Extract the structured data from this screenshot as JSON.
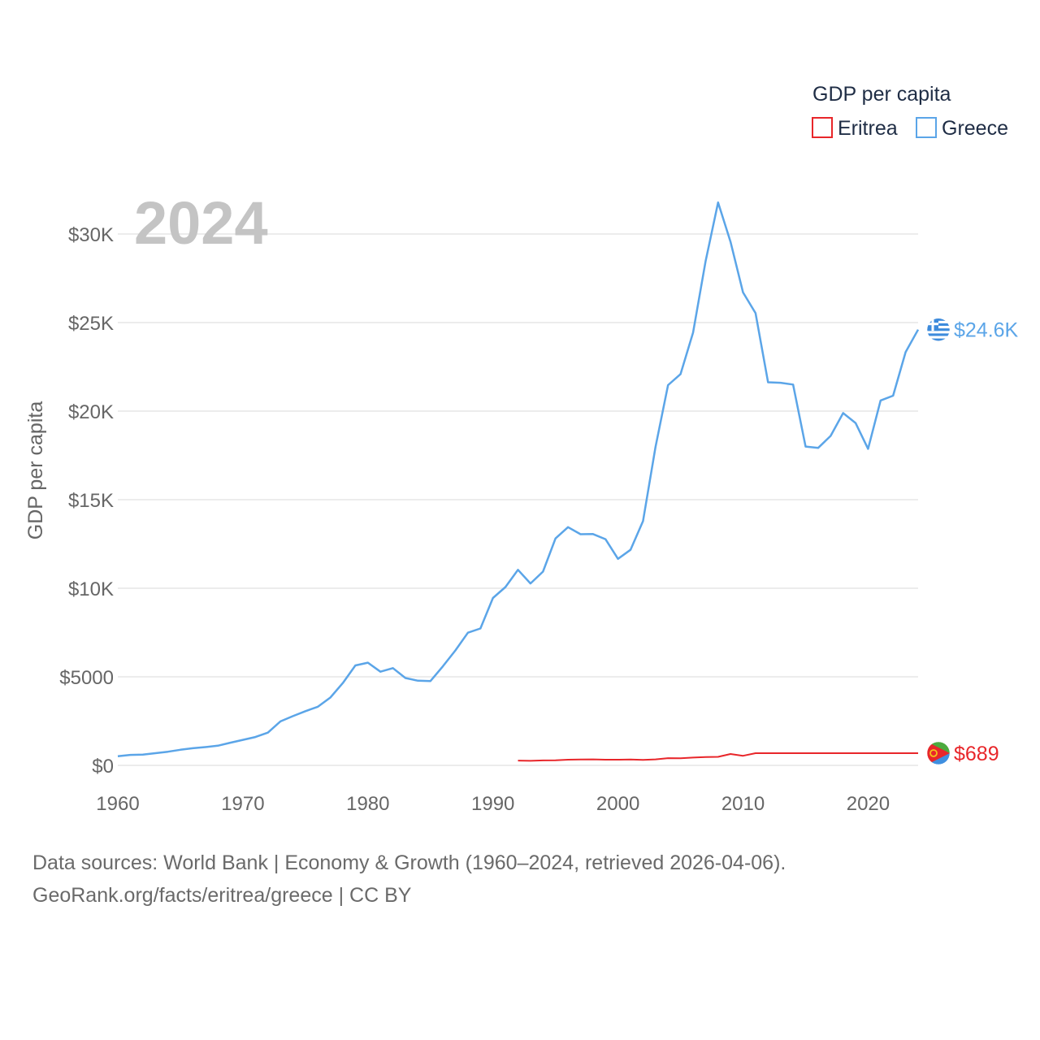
{
  "chart_data": {
    "type": "line",
    "title": "GDP per capita",
    "year_watermark": "2024",
    "ylabel": "GDP per capita",
    "xlabel": "",
    "xlim": [
      1960,
      2024
    ],
    "ylim": [
      0,
      32000
    ],
    "x_ticks": [
      "1960",
      "1970",
      "1980",
      "1990",
      "2000",
      "2010",
      "2020"
    ],
    "y_ticks": [
      {
        "value": 0,
        "label": "$0"
      },
      {
        "value": 5000,
        "label": "$5000"
      },
      {
        "value": 10000,
        "label": "$10K"
      },
      {
        "value": 15000,
        "label": "$15K"
      },
      {
        "value": 20000,
        "label": "$20K"
      },
      {
        "value": 25000,
        "label": "$25K"
      },
      {
        "value": 30000,
        "label": "$30K"
      }
    ],
    "grid": true,
    "legend": {
      "title": "GDP per capita",
      "placement": "top-right"
    },
    "series": [
      {
        "name": "Eritrea",
        "color": "#e8262a",
        "end_label": "$689",
        "flag_icon": "eritrea-flag-icon",
        "x": [
          1992,
          1993,
          1994,
          1995,
          1996,
          1997,
          1998,
          1999,
          2000,
          2001,
          2002,
          2003,
          2004,
          2005,
          2006,
          2007,
          2008,
          2009,
          2010,
          2011,
          2024
        ],
        "values": [
          270,
          255,
          280,
          290,
          320,
          330,
          340,
          320,
          320,
          330,
          310,
          340,
          410,
          400,
          440,
          470,
          480,
          640,
          540,
          690,
          689
        ]
      },
      {
        "name": "Greece",
        "color": "#5ba5e8",
        "end_label": "$24.6K",
        "flag_icon": "greece-flag-icon",
        "x": [
          1960,
          1961,
          1962,
          1963,
          1964,
          1965,
          1966,
          1967,
          1968,
          1969,
          1970,
          1971,
          1972,
          1973,
          1974,
          1975,
          1976,
          1977,
          1978,
          1979,
          1980,
          1981,
          1982,
          1983,
          1984,
          1985,
          1986,
          1987,
          1988,
          1989,
          1990,
          1991,
          1992,
          1993,
          1994,
          1995,
          1996,
          1997,
          1998,
          1999,
          2000,
          2001,
          2002,
          2003,
          2004,
          2005,
          2006,
          2007,
          2008,
          2009,
          2010,
          2011,
          2012,
          2013,
          2014,
          2015,
          2016,
          2017,
          2018,
          2019,
          2020,
          2021,
          2022,
          2023,
          2024
        ],
        "values": [
          520,
          590,
          610,
          690,
          770,
          880,
          970,
          1030,
          1110,
          1280,
          1440,
          1600,
          1850,
          2480,
          2780,
          3060,
          3310,
          3830,
          4650,
          5640,
          5800,
          5290,
          5490,
          4930,
          4780,
          4760,
          5600,
          6490,
          7490,
          7730,
          9450,
          10070,
          11040,
          10270,
          10940,
          12810,
          13450,
          13050,
          13060,
          12770,
          11660,
          12170,
          13790,
          17980,
          21470,
          22090,
          24430,
          28460,
          31780,
          29560,
          26700,
          25530,
          21630,
          21600,
          21500,
          18000,
          17920,
          18600,
          19890,
          19330,
          17870,
          20600,
          20870,
          23330,
          24600
        ]
      }
    ]
  },
  "footer": {
    "line1": "Data sources: World Bank | Economy & Growth (1960–2024, retrieved 2026-04-06).",
    "line2": "GeoRank.org/facts/eritrea/greece | CC BY"
  }
}
